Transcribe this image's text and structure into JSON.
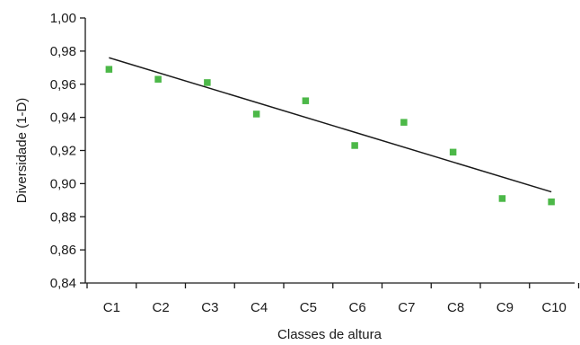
{
  "chart_data": {
    "type": "scatter",
    "title": "",
    "xlabel": "Classes de altura",
    "ylabel": "Diversidade (1-D)",
    "categories": [
      "C1",
      "C2",
      "C3",
      "C4",
      "C5",
      "C6",
      "C7",
      "C8",
      "C9",
      "C10"
    ],
    "y_tick_labels": [
      "0,84",
      "0,86",
      "0,88",
      "0,90",
      "0,92",
      "0,94",
      "0,96",
      "0,98",
      "1,00"
    ],
    "y_ticks": [
      0.84,
      0.86,
      0.88,
      0.9,
      0.92,
      0.94,
      0.96,
      0.98,
      1.0
    ],
    "ylim": [
      0.84,
      1.0
    ],
    "series": [
      {
        "values": [
          0.969,
          0.963,
          0.961,
          0.942,
          0.95,
          0.923,
          0.937,
          0.919,
          0.891,
          0.889
        ],
        "color": "#4cb848",
        "marker": "square"
      }
    ],
    "trendline": {
      "type": "linear",
      "start": [
        1,
        0.976
      ],
      "end": [
        10,
        0.895
      ],
      "color": "#1a1a1a"
    },
    "grid": false,
    "legend": "none"
  }
}
